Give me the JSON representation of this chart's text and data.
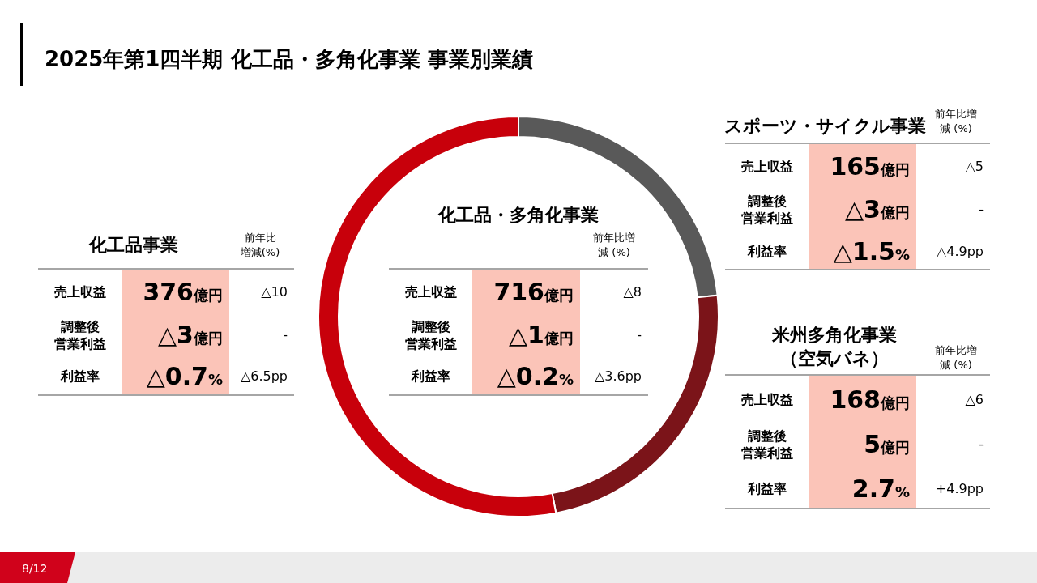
{
  "chart_data": [
    {
      "type": "donut",
      "title": "2025年第1四半期 化工品・多角化事業 事業別業績",
      "categories": [
        null,
        null,
        null
      ],
      "values": [
        23.3,
        23.7,
        53.0
      ],
      "colors": [
        "#595959",
        "#7b1419",
        "#c8000b"
      ],
      "annotations": [
        "8/12"
      ]
    },
    {
      "type": "other",
      "title": "化工品事業",
      "categories": [
        "売上収益",
        "調整後営業利益",
        "利益率"
      ],
      "value_labels": [
        "376億円",
        "△3億円",
        "△0.7%"
      ],
      "annotations": [
        "前年比増減(%)",
        "△10",
        "-",
        "△6.5pp"
      ]
    },
    {
      "type": "other",
      "title": "化工品・多角化事業",
      "categories": [
        "売上収益",
        "調整後営業利益",
        "利益率"
      ],
      "value_labels": [
        "716億円",
        "△1億円",
        "△0.2%"
      ],
      "annotations": [
        "前年比増減 (%)",
        "△8",
        "-",
        "△3.6pp"
      ]
    },
    {
      "type": "other",
      "title": "スポーツ・サイクル事業",
      "categories": [
        "売上収益",
        "調整後営業利益",
        "利益率"
      ],
      "value_labels": [
        "165億円",
        "△3億円",
        "△1.5%"
      ],
      "annotations": [
        "前年比増減 (%)",
        "△5",
        "-",
        "△4.9pp"
      ]
    },
    {
      "type": "other",
      "title": "米州多角化事業（空気バネ）",
      "categories": [
        "売上収益",
        "調整後営業利益",
        "利益率"
      ],
      "value_labels": [
        "168億円",
        "5億円",
        "2.7%"
      ],
      "annotations": [
        "前年比増減 (%)",
        "△6",
        "-",
        "+4.9pp"
      ]
    }
  ]
}
